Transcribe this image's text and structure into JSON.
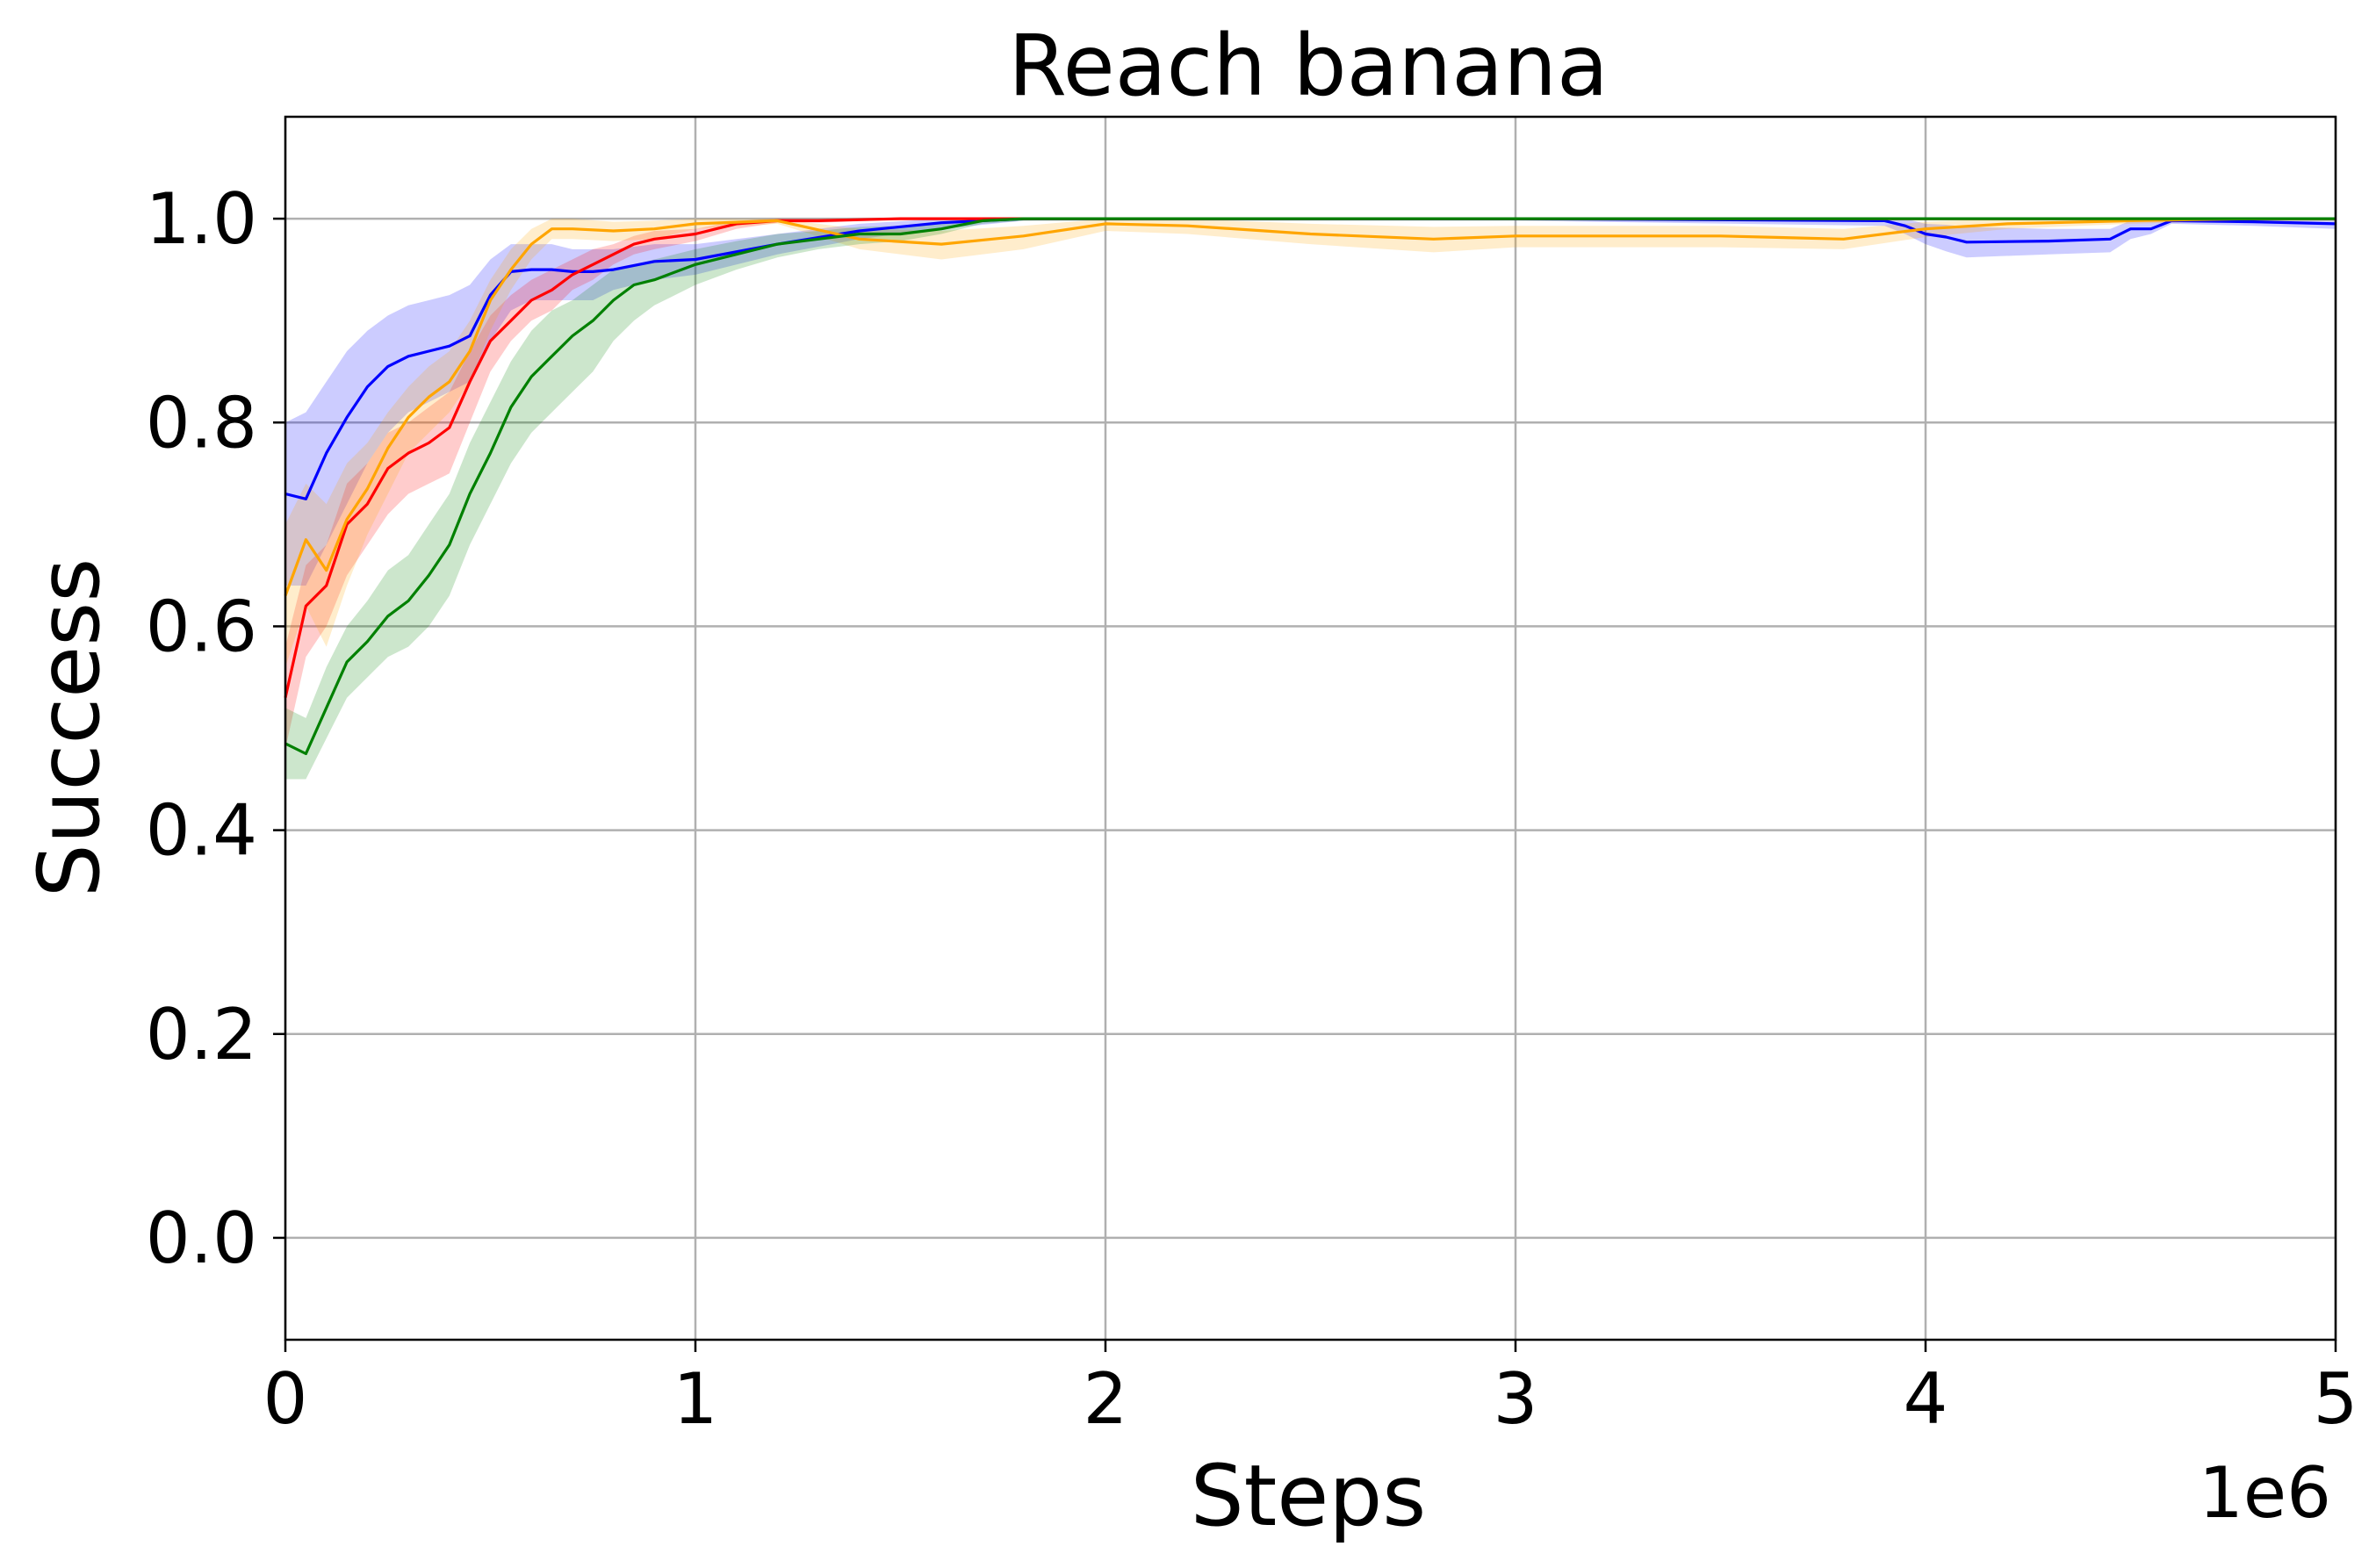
{
  "chart_data": {
    "type": "line",
    "title": "Reach banana",
    "xlabel": "Steps",
    "ylabel": "Success",
    "x_offset_label": "1e6",
    "xlim": [
      0,
      5
    ],
    "ylim": [
      -0.1,
      1.1
    ],
    "xticks": [
      0,
      1,
      2,
      3,
      4,
      5
    ],
    "xtick_labels": [
      "0",
      "1",
      "2",
      "3",
      "4",
      "5"
    ],
    "yticks": [
      0.0,
      0.2,
      0.4,
      0.6,
      0.8,
      1.0
    ],
    "ytick_labels": [
      "0.0",
      "0.2",
      "0.4",
      "0.6",
      "0.8",
      "1.0"
    ],
    "grid": true,
    "series": [
      {
        "color": "#0000ff",
        "band_color": "#0000ff",
        "x": [
          0,
          0.05,
          0.1,
          0.15,
          0.2,
          0.25,
          0.3,
          0.35,
          0.4,
          0.45,
          0.5,
          0.55,
          0.6,
          0.65,
          0.7,
          0.75,
          0.8,
          0.9,
          1.0,
          1.2,
          1.4,
          1.6,
          1.8,
          2.0,
          3.0,
          3.9,
          3.95,
          4.0,
          4.05,
          4.1,
          4.3,
          4.45,
          4.5,
          4.55,
          4.6,
          4.8,
          5.0
        ],
        "y": [
          0.73,
          0.725,
          0.77,
          0.805,
          0.835,
          0.855,
          0.865,
          0.87,
          0.875,
          0.885,
          0.925,
          0.948,
          0.95,
          0.95,
          0.948,
          0.948,
          0.95,
          0.958,
          0.96,
          0.975,
          0.988,
          0.996,
          1.0,
          1.0,
          1.0,
          0.998,
          0.993,
          0.985,
          0.982,
          0.977,
          0.978,
          0.98,
          0.99,
          0.99,
          0.998,
          0.997,
          0.995
        ],
        "lower": [
          0.64,
          0.64,
          0.68,
          0.72,
          0.76,
          0.79,
          0.81,
          0.82,
          0.83,
          0.84,
          0.88,
          0.91,
          0.92,
          0.92,
          0.92,
          0.92,
          0.93,
          0.94,
          0.945,
          0.965,
          0.98,
          0.99,
          0.998,
          0.998,
          0.998,
          0.993,
          0.985,
          0.975,
          0.968,
          0.962,
          0.965,
          0.967,
          0.98,
          0.985,
          0.995,
          0.993,
          0.99
        ],
        "upper": [
          0.8,
          0.81,
          0.84,
          0.87,
          0.89,
          0.905,
          0.915,
          0.92,
          0.925,
          0.935,
          0.96,
          0.975,
          0.975,
          0.975,
          0.97,
          0.97,
          0.97,
          0.975,
          0.975,
          0.985,
          0.995,
          1.0,
          1.0,
          1.0,
          1.0,
          1.0,
          1.0,
          0.995,
          0.994,
          0.992,
          0.99,
          0.99,
          0.998,
          0.998,
          1.0,
          1.0,
          1.0
        ]
      },
      {
        "color": "#ff0000",
        "band_color": "#ff0000",
        "x": [
          0,
          0.05,
          0.1,
          0.15,
          0.2,
          0.25,
          0.3,
          0.35,
          0.4,
          0.45,
          0.5,
          0.55,
          0.6,
          0.65,
          0.7,
          0.75,
          0.8,
          0.85,
          0.9,
          1.0,
          1.1,
          1.2,
          1.3,
          1.5,
          2.0,
          3.0,
          4.0,
          5.0
        ],
        "y": [
          0.53,
          0.62,
          0.64,
          0.7,
          0.72,
          0.755,
          0.77,
          0.78,
          0.795,
          0.84,
          0.88,
          0.9,
          0.92,
          0.93,
          0.945,
          0.955,
          0.965,
          0.975,
          0.98,
          0.985,
          0.995,
          0.998,
          0.998,
          1.0,
          1.0,
          1.0,
          1.0,
          1.0
        ],
        "lower": [
          0.48,
          0.57,
          0.6,
          0.65,
          0.68,
          0.71,
          0.73,
          0.74,
          0.75,
          0.8,
          0.85,
          0.88,
          0.9,
          0.91,
          0.93,
          0.94,
          0.955,
          0.965,
          0.97,
          0.978,
          0.99,
          0.996,
          0.996,
          0.999,
          1.0,
          1.0,
          1.0,
          1.0
        ],
        "upper": [
          0.58,
          0.66,
          0.68,
          0.74,
          0.76,
          0.79,
          0.8,
          0.815,
          0.83,
          0.87,
          0.905,
          0.925,
          0.94,
          0.95,
          0.96,
          0.97,
          0.975,
          0.983,
          0.988,
          0.99,
          0.998,
          1.0,
          1.0,
          1.0,
          1.0,
          1.0,
          1.0,
          1.0
        ]
      },
      {
        "color": "#ffa500",
        "band_color": "#ffa500",
        "x": [
          0,
          0.05,
          0.1,
          0.15,
          0.2,
          0.25,
          0.3,
          0.35,
          0.4,
          0.45,
          0.5,
          0.55,
          0.6,
          0.65,
          0.7,
          0.8,
          0.9,
          1.0,
          1.2,
          1.4,
          1.6,
          1.8,
          2.0,
          2.2,
          2.5,
          2.8,
          3.0,
          3.5,
          3.8,
          4.0,
          4.2,
          4.5,
          4.8,
          5.0
        ],
        "y": [
          0.63,
          0.685,
          0.655,
          0.705,
          0.735,
          0.775,
          0.805,
          0.825,
          0.84,
          0.87,
          0.92,
          0.95,
          0.975,
          0.99,
          0.99,
          0.988,
          0.99,
          0.995,
          0.998,
          0.98,
          0.975,
          0.983,
          0.995,
          0.993,
          0.985,
          0.98,
          0.983,
          0.983,
          0.98,
          0.99,
          0.995,
          0.998,
          1.0,
          1.0
        ],
        "lower": [
          0.56,
          0.62,
          0.58,
          0.64,
          0.69,
          0.73,
          0.77,
          0.79,
          0.81,
          0.84,
          0.89,
          0.93,
          0.96,
          0.98,
          0.98,
          0.978,
          0.98,
          0.99,
          0.995,
          0.97,
          0.96,
          0.97,
          0.988,
          0.985,
          0.975,
          0.967,
          0.972,
          0.972,
          0.97,
          0.982,
          0.99,
          0.995,
          0.998,
          0.998
        ],
        "upper": [
          0.7,
          0.74,
          0.72,
          0.76,
          0.78,
          0.81,
          0.835,
          0.855,
          0.87,
          0.9,
          0.94,
          0.97,
          0.99,
          1.0,
          1.0,
          0.997,
          0.998,
          1.0,
          1.0,
          0.99,
          0.988,
          0.993,
          1.0,
          1.0,
          0.995,
          0.992,
          0.993,
          0.993,
          0.99,
          0.997,
          1.0,
          1.0,
          1.0,
          1.0
        ]
      },
      {
        "color": "#008000",
        "band_color": "#008000",
        "x": [
          0,
          0.05,
          0.1,
          0.15,
          0.2,
          0.25,
          0.3,
          0.35,
          0.4,
          0.45,
          0.5,
          0.55,
          0.6,
          0.65,
          0.7,
          0.75,
          0.8,
          0.85,
          0.9,
          1.0,
          1.1,
          1.2,
          1.3,
          1.4,
          1.5,
          1.6,
          1.7,
          1.8,
          2.0,
          3.0,
          4.0,
          5.0
        ],
        "y": [
          0.485,
          0.475,
          0.52,
          0.565,
          0.585,
          0.61,
          0.625,
          0.65,
          0.68,
          0.73,
          0.77,
          0.815,
          0.845,
          0.865,
          0.885,
          0.9,
          0.92,
          0.935,
          0.94,
          0.955,
          0.965,
          0.975,
          0.98,
          0.985,
          0.985,
          0.99,
          0.998,
          1.0,
          1.0,
          1.0,
          1.0,
          1.0
        ],
        "lower": [
          0.45,
          0.45,
          0.49,
          0.53,
          0.55,
          0.57,
          0.58,
          0.6,
          0.63,
          0.68,
          0.72,
          0.76,
          0.79,
          0.81,
          0.83,
          0.85,
          0.88,
          0.9,
          0.915,
          0.935,
          0.95,
          0.962,
          0.97,
          0.975,
          0.978,
          0.985,
          0.995,
          0.998,
          1.0,
          1.0,
          1.0,
          1.0
        ],
        "upper": [
          0.52,
          0.51,
          0.56,
          0.6,
          0.625,
          0.655,
          0.67,
          0.7,
          0.73,
          0.78,
          0.82,
          0.86,
          0.89,
          0.91,
          0.92,
          0.935,
          0.95,
          0.955,
          0.96,
          0.97,
          0.978,
          0.985,
          0.988,
          0.992,
          0.993,
          0.995,
          1.0,
          1.0,
          1.0,
          1.0,
          1.0,
          1.0
        ]
      }
    ]
  }
}
